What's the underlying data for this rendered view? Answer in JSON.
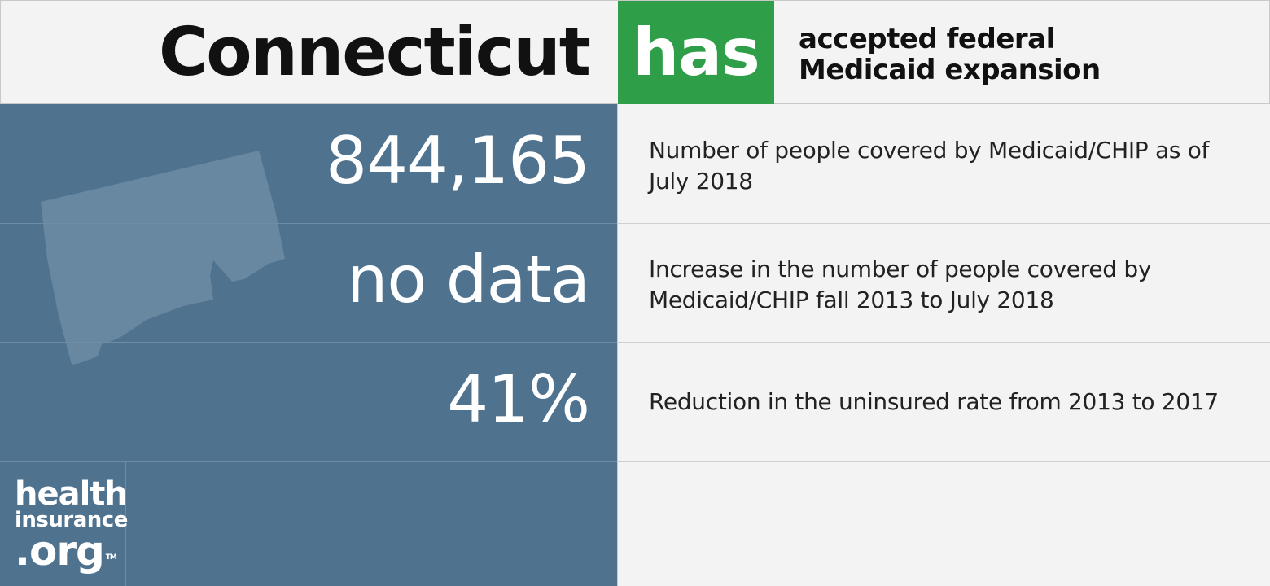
{
  "header": {
    "state": "Connecticut",
    "status": "has",
    "status_description": "accepted federal Medicaid expansion"
  },
  "stats": [
    {
      "value": "844,165",
      "label": "Number of people covered by Medicaid/CHIP as of July 2018"
    },
    {
      "value": "no data",
      "label": "Increase in the number of people covered by Medicaid/CHIP fall 2013 to July 2018"
    },
    {
      "value": "41%",
      "label": "Reduction in the uninsured rate from 2013 to 2017"
    }
  ],
  "logo": {
    "line1": "health",
    "line2": "insurance",
    "line3": ".org",
    "tm": "TM"
  },
  "colors": {
    "panel_blue": "#4f728f",
    "badge_green": "#2e9e48",
    "background": "#f3f3f3"
  }
}
